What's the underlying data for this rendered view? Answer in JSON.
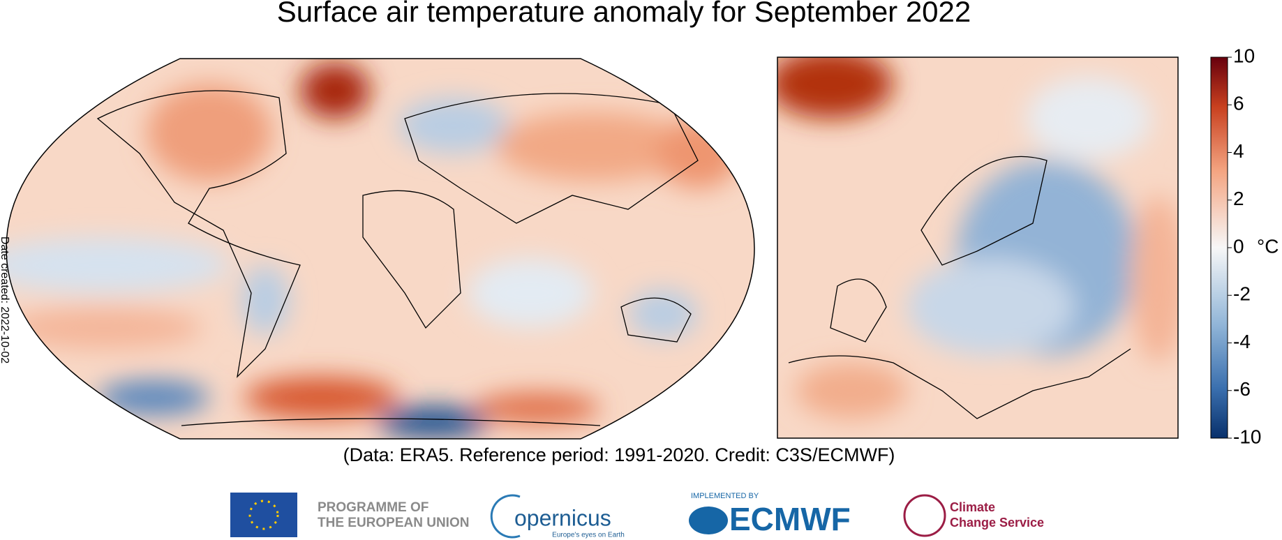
{
  "title": "Surface air temperature anomaly for September 2022",
  "colorbar": {
    "ticks": [
      10,
      6,
      4,
      2,
      0,
      -2,
      -4,
      -6,
      -10
    ],
    "unit": "°C"
  },
  "date_created": "Date created: 2022-10-02",
  "credit": "(Data: ERA5.  Reference period: 1991-2020.  Credit: C3S/ECMWF)",
  "logos": {
    "eu_line1": "PROGRAMME OF",
    "eu_line2": "THE EUROPEAN UNION",
    "copernicus": "opernicus",
    "copernicus_tagline": "Europe's eyes on Earth",
    "ecmwf_note": "IMPLEMENTED BY",
    "ecmwf": "ECMWF",
    "c3s_line1": "Climate",
    "c3s_line2": "Change Service"
  }
}
